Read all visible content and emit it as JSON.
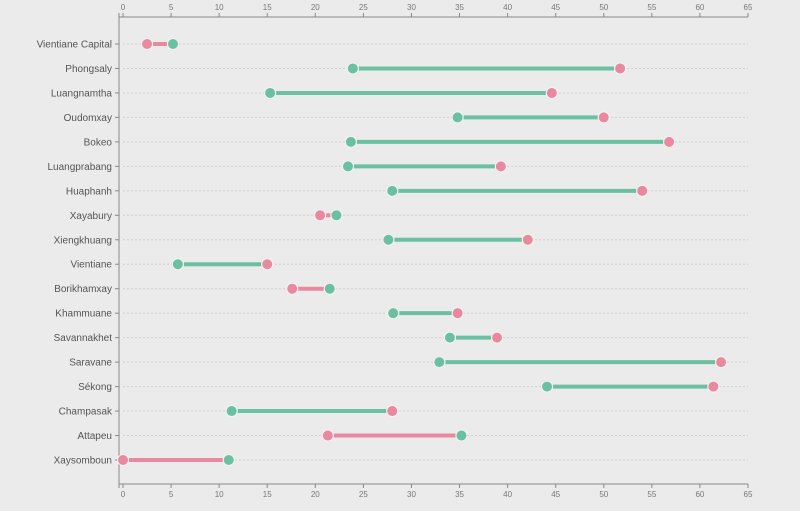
{
  "chart_data": {
    "type": "dumbbell",
    "xlim": [
      0,
      65
    ],
    "x_ticks": [
      0,
      5,
      10,
      15,
      20,
      25,
      30,
      35,
      40,
      45,
      50,
      55,
      60,
      65
    ],
    "x_axis_positions": [
      "top",
      "bottom"
    ],
    "grid": "horizontal dashed",
    "colors": {
      "pink": "#e8899f",
      "green": "#6cc0a2",
      "background": "#ebebeb"
    },
    "categories": [
      "Vientiane Capital",
      "Phongsaly",
      "Luangnamtha",
      "Oudomxay",
      "Bokeo",
      "Luangprabang",
      "Huaphanh",
      "Xayabury",
      "Xiengkhuang",
      "Vientiane",
      "Borikhamxay",
      "Khammuane",
      "Savannakhet",
      "Saravane",
      "Sékong",
      "Champasak",
      "Attapeu",
      "Xaysomboun"
    ],
    "series": [
      {
        "color_key": "pink",
        "values": [
          2.5,
          51.7,
          44.6,
          50.0,
          56.8,
          39.3,
          54.0,
          20.5,
          42.1,
          15.0,
          17.6,
          34.8,
          38.9,
          62.2,
          61.4,
          28.0,
          21.3,
          0.0
        ]
      },
      {
        "color_key": "green",
        "values": [
          5.2,
          23.9,
          15.3,
          34.8,
          23.7,
          23.4,
          28.0,
          22.2,
          27.6,
          5.7,
          21.5,
          28.1,
          34.0,
          32.9,
          44.1,
          11.3,
          35.2,
          11.0
        ]
      }
    ]
  }
}
